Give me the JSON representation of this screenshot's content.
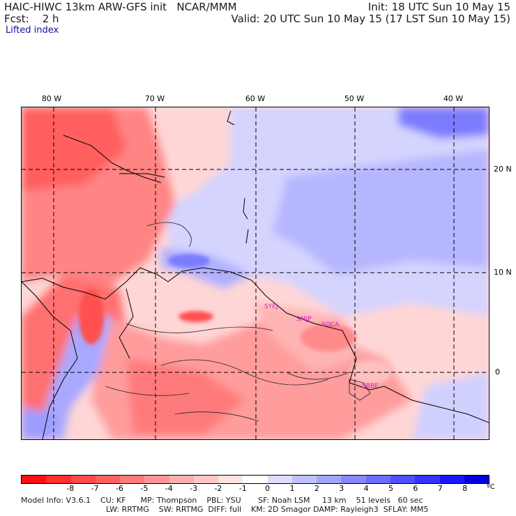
{
  "header": {
    "line1_left": "HAIC-HIWC 13km ARW-GFS init   NCAR/MMM",
    "line2_left": "Fcst:    2 h",
    "line1_right": "Init: 18 UTC Sun 10 May 15",
    "line2_right": "Valid: 20 UTC Sun 10 May 15 (17 LST Sun 10 May 15)",
    "field_name": "Lifted index"
  },
  "map": {
    "lon_labels": [
      "80 W",
      "70 W",
      "60 W",
      "50 W",
      "40 W"
    ],
    "lat_labels": [
      "20 N",
      "10 N",
      "0"
    ],
    "stations": [
      "SYEJ",
      "SMJP",
      "SOCA",
      "SBBE"
    ]
  },
  "colorbar": {
    "colors": [
      "#ff1010",
      "#ff3030",
      "#ff4a4a",
      "#ff6060",
      "#ff7a7a",
      "#ff9494",
      "#ffaeae",
      "#ffc8c8",
      "#ffe2e2",
      "#ffffff",
      "#dcdcff",
      "#c0c0ff",
      "#a4a4ff",
      "#8888ff",
      "#6c6cff",
      "#5050ff",
      "#3434ff",
      "#1818ff",
      "#0000e0"
    ],
    "ticks": [
      "-8",
      "-7",
      "-6",
      "-5",
      "-4",
      "-3",
      "-2",
      "-1",
      "0",
      "1",
      "2",
      "3",
      "4",
      "5",
      "6",
      "7",
      "8"
    ],
    "unit": "ºC"
  },
  "footer": {
    "line1": "Model Info: V3.6.1    CU: KF      MP: Thompson    PBL: YSU       SF: Noah LSM     13 km    51 levels   60 sec",
    "line2": "LW: RRTMG    SW: RRTMG  DIFF: full    KM: 2D Smagor DAMP: Rayleigh3  SFLAY: MM5"
  }
}
